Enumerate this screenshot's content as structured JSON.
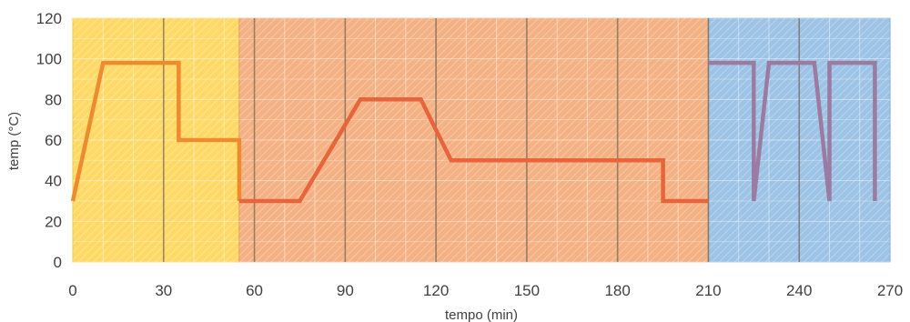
{
  "chart_data": {
    "type": "line",
    "title": "",
    "xlabel": "tempo (min)",
    "ylabel": "temp (°C)",
    "xlim": [
      0,
      270
    ],
    "ylim": [
      0,
      120
    ],
    "xticks": [
      0,
      30,
      60,
      90,
      120,
      150,
      180,
      210,
      240,
      270
    ],
    "yticks": [
      0,
      20,
      40,
      60,
      80,
      100,
      120
    ],
    "grid": true,
    "legend": "none",
    "phases": [
      {
        "x_start": 0,
        "x_end": 55,
        "fill": "#FFD966",
        "border": "#F4C842"
      },
      {
        "x_start": 55,
        "x_end": 210,
        "fill": "#F4B183",
        "border": "#E39A6A"
      },
      {
        "x_start": 210,
        "x_end": 270,
        "fill": "#9DC3E6",
        "border": "#7FAAD3"
      }
    ],
    "series": [
      {
        "color": "#ED8B2E",
        "x": [
          0,
          10,
          35,
          35,
          55,
          55
        ],
        "y": [
          30,
          98,
          98,
          60,
          60,
          30
        ]
      },
      {
        "color": "#E8643A",
        "x": [
          55,
          75,
          95,
          115,
          125,
          195,
          195,
          210
        ],
        "y": [
          30,
          30,
          80,
          80,
          50,
          50,
          30,
          30
        ]
      },
      {
        "color": "#9B7BA0",
        "x": [
          210,
          225,
          225,
          230,
          245,
          250,
          250,
          265,
          265
        ],
        "y": [
          98,
          98,
          30,
          98,
          98,
          30,
          98,
          98,
          30
        ]
      }
    ]
  }
}
